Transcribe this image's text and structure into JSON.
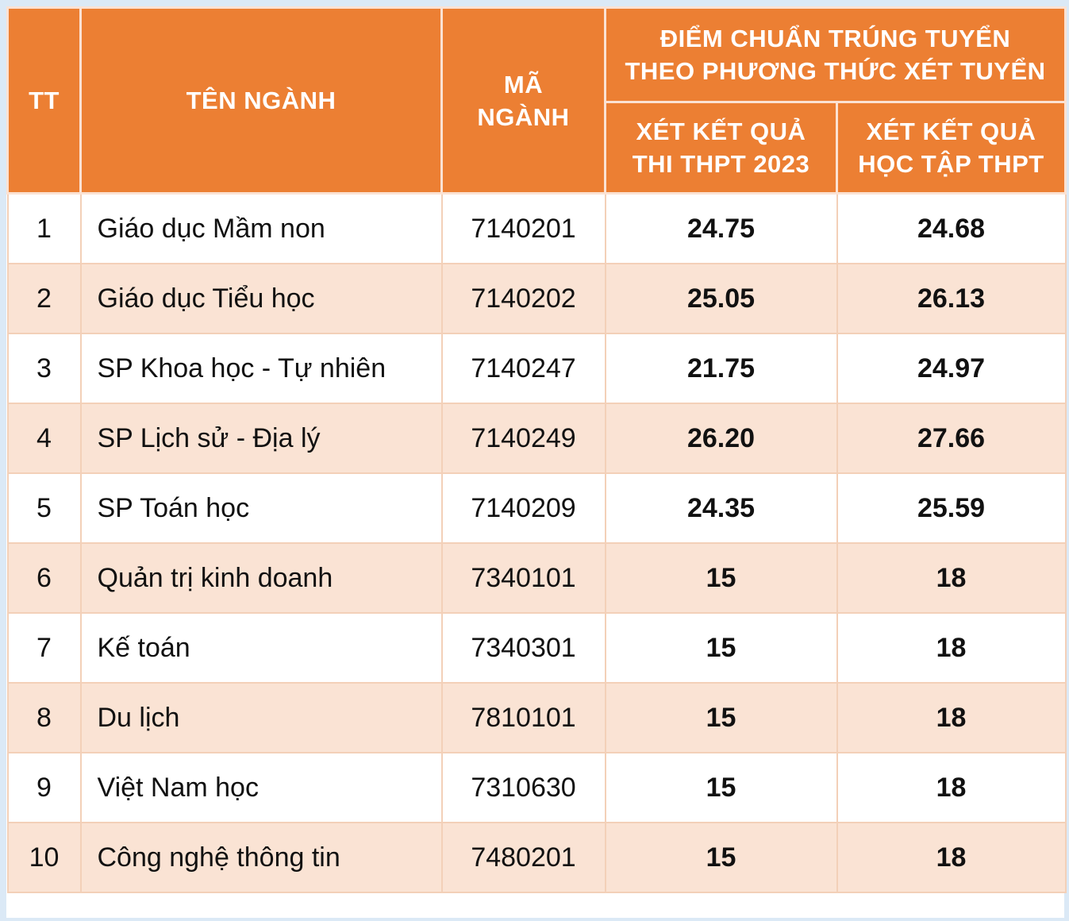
{
  "header": {
    "tt": "TT",
    "name": "TÊN NGÀNH",
    "code_line1": "MÃ",
    "code_line2": "NGÀNH",
    "group_line1": "ĐIỂM CHUẨN TRÚNG TUYỂN",
    "group_line2": "THEO PHƯƠNG THỨC XÉT TUYỂN",
    "col1_line1": "XÉT KẾT QUẢ",
    "col1_line2": "THI THPT 2023",
    "col2_line1": "XÉT KẾT QUẢ",
    "col2_line2": "HỌC TẬP THPT"
  },
  "rows": [
    {
      "tt": "1",
      "name": "Giáo dục Mầm non",
      "code": "7140201",
      "thpt": "24.75",
      "hoc_tap": "24.68"
    },
    {
      "tt": "2",
      "name": "Giáo dục Tiểu học",
      "code": "7140202",
      "thpt": "25.05",
      "hoc_tap": "26.13"
    },
    {
      "tt": "3",
      "name": "SP Khoa học - Tự nhiên",
      "code": "7140247",
      "thpt": "21.75",
      "hoc_tap": "24.97"
    },
    {
      "tt": "4",
      "name": "SP Lịch sử - Địa lý",
      "code": "7140249",
      "thpt": "26.20",
      "hoc_tap": "27.66"
    },
    {
      "tt": "5",
      "name": "SP Toán học",
      "code": "7140209",
      "thpt": "24.35",
      "hoc_tap": "25.59"
    },
    {
      "tt": "6",
      "name": "Quản trị kinh doanh",
      "code": "7340101",
      "thpt": "15",
      "hoc_tap": "18"
    },
    {
      "tt": "7",
      "name": "Kế toán",
      "code": "7340301",
      "thpt": "15",
      "hoc_tap": "18"
    },
    {
      "tt": "8",
      "name": "Du lịch",
      "code": "7810101",
      "thpt": "15",
      "hoc_tap": "18"
    },
    {
      "tt": "9",
      "name": "Việt Nam học",
      "code": "7310630",
      "thpt": "15",
      "hoc_tap": "18"
    },
    {
      "tt": "10",
      "name": "Công nghệ thông tin",
      "code": "7480201",
      "thpt": "15",
      "hoc_tap": "18"
    }
  ]
}
